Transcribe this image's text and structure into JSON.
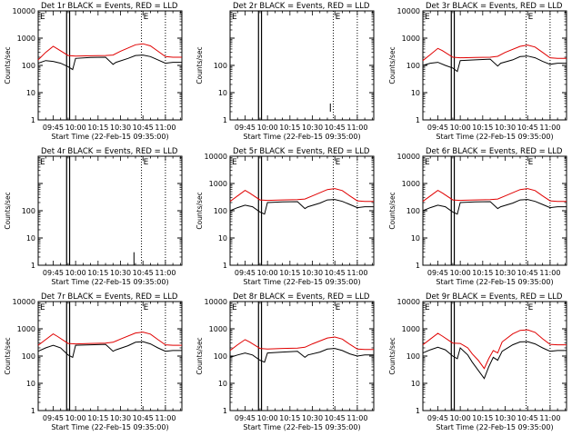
{
  "chart_data": {
    "type": "line",
    "common": {
      "xlabel": "Start Time (22-Feb-15 09:35:00)",
      "ylabel": "Counts/sec",
      "xlim": [
        "09:35",
        "11:11"
      ],
      "ylim": [
        1,
        10000
      ],
      "yscale": "log",
      "x_tick_labels": [
        "09:45",
        "10:00",
        "10:15",
        "10:30",
        "10:45",
        "11:00"
      ],
      "y_tick_labels_small": [
        "1",
        "10",
        "100",
        "1000",
        "10000"
      ],
      "y_tick_labels_large": [
        "1",
        "10",
        "100",
        "1000",
        "10000"
      ],
      "series_colors": {
        "events": "#000000",
        "lld": "#e00000"
      },
      "vertical_markers": {
        "solid": [
          "09:54",
          "09:56"
        ],
        "dotted": [
          "10:44",
          "11:00"
        ]
      },
      "marker_letters": [
        "E",
        "E"
      ]
    },
    "panels": [
      {
        "title": "Det 1r BLACK = Events, RED = LLD",
        "y_tick_labels": [
          "1",
          "10",
          "100",
          "1000",
          "10000"
        ],
        "events": [
          [
            "09:35",
            120
          ],
          [
            "09:40",
            150
          ],
          [
            "09:45",
            140
          ],
          [
            "09:50",
            120
          ],
          [
            "09:55",
            90
          ],
          [
            "09:58",
            70
          ],
          [
            "10:00",
            180
          ],
          [
            "10:10",
            195
          ],
          [
            "10:20",
            200
          ],
          [
            "10:25",
            110
          ],
          [
            "10:27",
            130
          ],
          [
            "10:35",
            180
          ],
          [
            "10:40",
            230
          ],
          [
            "10:45",
            240
          ],
          [
            "10:50",
            210
          ],
          [
            "10:55",
            160
          ],
          [
            "11:00",
            120
          ],
          [
            "11:05",
            130
          ],
          [
            "11:11",
            130
          ]
        ],
        "lld": [
          [
            "09:35",
            160
          ],
          [
            "09:40",
            300
          ],
          [
            "09:45",
            500
          ],
          [
            "09:48",
            400
          ],
          [
            "09:55",
            230
          ],
          [
            "10:00",
            220
          ],
          [
            "10:10",
            225
          ],
          [
            "10:20",
            230
          ],
          [
            "10:25",
            240
          ],
          [
            "10:30",
            330
          ],
          [
            "10:40",
            570
          ],
          [
            "10:45",
            620
          ],
          [
            "10:50",
            520
          ],
          [
            "10:55",
            330
          ],
          [
            "11:00",
            210
          ],
          [
            "11:05",
            200
          ],
          [
            "11:11",
            200
          ]
        ]
      },
      {
        "title": "Det 2r BLACK = Events, RED = LLD",
        "y_tick_labels": [
          "1",
          "10",
          "100"
        ],
        "events": [],
        "lld": [],
        "extra_marks": [
          [
            "10:42",
            2
          ],
          [
            "10:42",
            4
          ]
        ]
      },
      {
        "title": "Det 3r BLACK = Events, RED = LLD",
        "y_tick_labels": [
          "1",
          "10",
          "100",
          "1000",
          "10000"
        ],
        "events": [
          [
            "09:35",
            100
          ],
          [
            "09:40",
            120
          ],
          [
            "09:45",
            130
          ],
          [
            "09:50",
            100
          ],
          [
            "09:55",
            80
          ],
          [
            "09:58",
            60
          ],
          [
            "10:00",
            150
          ],
          [
            "10:10",
            160
          ],
          [
            "10:20",
            170
          ],
          [
            "10:25",
            95
          ],
          [
            "10:27",
            120
          ],
          [
            "10:35",
            160
          ],
          [
            "10:40",
            210
          ],
          [
            "10:45",
            220
          ],
          [
            "10:50",
            190
          ],
          [
            "10:55",
            140
          ],
          [
            "11:00",
            110
          ],
          [
            "11:05",
            120
          ],
          [
            "11:11",
            120
          ]
        ],
        "lld": [
          [
            "09:35",
            150
          ],
          [
            "09:40",
            250
          ],
          [
            "09:45",
            420
          ],
          [
            "09:48",
            350
          ],
          [
            "09:55",
            200
          ],
          [
            "10:00",
            190
          ],
          [
            "10:10",
            195
          ],
          [
            "10:20",
            200
          ],
          [
            "10:25",
            215
          ],
          [
            "10:30",
            300
          ],
          [
            "10:40",
            500
          ],
          [
            "10:45",
            560
          ],
          [
            "10:50",
            470
          ],
          [
            "10:55",
            300
          ],
          [
            "11:00",
            190
          ],
          [
            "11:05",
            180
          ],
          [
            "11:11",
            180
          ]
        ]
      },
      {
        "title": "Det 4r BLACK = Events, RED = LLD",
        "y_tick_labels": [
          "1",
          "10",
          "100"
        ],
        "events": [],
        "lld": [],
        "extra_marks": [
          [
            "10:39",
            1
          ],
          [
            "10:39",
            3
          ]
        ]
      },
      {
        "title": "Det 5r BLACK = Events, RED = LLD",
        "y_tick_labels": [
          "1",
          "10",
          "100",
          "1000",
          "10000"
        ],
        "events": [
          [
            "09:35",
            100
          ],
          [
            "09:40",
            130
          ],
          [
            "09:45",
            160
          ],
          [
            "09:50",
            140
          ],
          [
            "09:55",
            90
          ],
          [
            "09:58",
            75
          ],
          [
            "10:00",
            200
          ],
          [
            "10:10",
            210
          ],
          [
            "10:20",
            215
          ],
          [
            "10:25",
            120
          ],
          [
            "10:27",
            140
          ],
          [
            "10:35",
            190
          ],
          [
            "10:40",
            250
          ],
          [
            "10:45",
            260
          ],
          [
            "10:50",
            220
          ],
          [
            "10:55",
            170
          ],
          [
            "11:00",
            130
          ],
          [
            "11:05",
            140
          ],
          [
            "11:11",
            140
          ]
        ],
        "lld": [
          [
            "09:35",
            220
          ],
          [
            "09:40",
            350
          ],
          [
            "09:45",
            560
          ],
          [
            "09:48",
            450
          ],
          [
            "09:55",
            250
          ],
          [
            "10:00",
            240
          ],
          [
            "10:10",
            250
          ],
          [
            "10:20",
            255
          ],
          [
            "10:25",
            270
          ],
          [
            "10:30",
            350
          ],
          [
            "10:40",
            600
          ],
          [
            "10:45",
            650
          ],
          [
            "10:50",
            550
          ],
          [
            "10:55",
            350
          ],
          [
            "11:00",
            230
          ],
          [
            "11:05",
            220
          ],
          [
            "11:11",
            220
          ]
        ]
      },
      {
        "title": "Det 6r BLACK = Events, RED = LLD",
        "y_tick_labels": [
          "1",
          "10",
          "100",
          "1000",
          "10000"
        ],
        "events": [
          [
            "09:35",
            100
          ],
          [
            "09:40",
            130
          ],
          [
            "09:45",
            160
          ],
          [
            "09:50",
            140
          ],
          [
            "09:55",
            90
          ],
          [
            "09:58",
            75
          ],
          [
            "10:00",
            200
          ],
          [
            "10:10",
            210
          ],
          [
            "10:20",
            215
          ],
          [
            "10:25",
            120
          ],
          [
            "10:27",
            140
          ],
          [
            "10:35",
            190
          ],
          [
            "10:40",
            250
          ],
          [
            "10:45",
            260
          ],
          [
            "10:50",
            220
          ],
          [
            "10:55",
            170
          ],
          [
            "11:00",
            130
          ],
          [
            "11:05",
            140
          ],
          [
            "11:11",
            140
          ]
        ],
        "lld": [
          [
            "09:35",
            220
          ],
          [
            "09:40",
            350
          ],
          [
            "09:45",
            560
          ],
          [
            "09:48",
            450
          ],
          [
            "09:55",
            250
          ],
          [
            "10:00",
            240
          ],
          [
            "10:10",
            250
          ],
          [
            "10:20",
            255
          ],
          [
            "10:25",
            270
          ],
          [
            "10:30",
            350
          ],
          [
            "10:40",
            600
          ],
          [
            "10:45",
            650
          ],
          [
            "10:50",
            550
          ],
          [
            "10:55",
            350
          ],
          [
            "11:00",
            230
          ],
          [
            "11:05",
            220
          ],
          [
            "11:11",
            220
          ]
        ]
      },
      {
        "title": "Det 7r BLACK = Events, RED = LLD",
        "y_tick_labels": [
          "1",
          "10",
          "100",
          "1000",
          "10000"
        ],
        "events": [
          [
            "09:35",
            150
          ],
          [
            "09:40",
            200
          ],
          [
            "09:45",
            250
          ],
          [
            "09:50",
            200
          ],
          [
            "09:55",
            110
          ],
          [
            "09:58",
            90
          ],
          [
            "10:00",
            250
          ],
          [
            "10:10",
            260
          ],
          [
            "10:20",
            270
          ],
          [
            "10:25",
            150
          ],
          [
            "10:27",
            170
          ],
          [
            "10:35",
            240
          ],
          [
            "10:40",
            320
          ],
          [
            "10:45",
            340
          ],
          [
            "10:50",
            280
          ],
          [
            "10:55",
            200
          ],
          [
            "11:00",
            150
          ],
          [
            "11:05",
            160
          ],
          [
            "11:11",
            160
          ]
        ],
        "lld": [
          [
            "09:35",
            250
          ],
          [
            "09:40",
            400
          ],
          [
            "09:45",
            650
          ],
          [
            "09:48",
            520
          ],
          [
            "09:55",
            290
          ],
          [
            "10:00",
            280
          ],
          [
            "10:10",
            290
          ],
          [
            "10:20",
            300
          ],
          [
            "10:25",
            320
          ],
          [
            "10:30",
            420
          ],
          [
            "10:40",
            700
          ],
          [
            "10:45",
            760
          ],
          [
            "10:50",
            640
          ],
          [
            "10:55",
            400
          ],
          [
            "11:00",
            260
          ],
          [
            "11:05",
            250
          ],
          [
            "11:11",
            250
          ]
        ]
      },
      {
        "title": "Det 8r BLACK = Events, RED = LLD",
        "y_tick_labels": [
          "1",
          "10",
          "100",
          "1000",
          "10000"
        ],
        "events": [
          [
            "09:35",
            90
          ],
          [
            "09:40",
            110
          ],
          [
            "09:45",
            130
          ],
          [
            "09:50",
            110
          ],
          [
            "09:55",
            70
          ],
          [
            "09:58",
            60
          ],
          [
            "10:00",
            130
          ],
          [
            "10:10",
            140
          ],
          [
            "10:20",
            150
          ],
          [
            "10:25",
            90
          ],
          [
            "10:27",
            110
          ],
          [
            "10:35",
            140
          ],
          [
            "10:40",
            180
          ],
          [
            "10:45",
            190
          ],
          [
            "10:50",
            160
          ],
          [
            "10:55",
            120
          ],
          [
            "11:00",
            100
          ],
          [
            "11:05",
            110
          ],
          [
            "11:11",
            110
          ]
        ],
        "lld": [
          [
            "09:35",
            160
          ],
          [
            "09:40",
            260
          ],
          [
            "09:45",
            400
          ],
          [
            "09:48",
            330
          ],
          [
            "09:55",
            190
          ],
          [
            "10:00",
            180
          ],
          [
            "10:10",
            190
          ],
          [
            "10:20",
            195
          ],
          [
            "10:25",
            210
          ],
          [
            "10:30",
            280
          ],
          [
            "10:40",
            460
          ],
          [
            "10:45",
            500
          ],
          [
            "10:50",
            420
          ],
          [
            "10:55",
            270
          ],
          [
            "11:00",
            180
          ],
          [
            "11:05",
            175
          ],
          [
            "11:11",
            175
          ]
        ]
      },
      {
        "title": "Det 9r BLACK = Events, RED = LLD",
        "y_tick_labels": [
          "1",
          "10",
          "100",
          "1000",
          "10000"
        ],
        "events": [
          [
            "09:35",
            130
          ],
          [
            "09:40",
            170
          ],
          [
            "09:45",
            210
          ],
          [
            "09:50",
            170
          ],
          [
            "09:55",
            100
          ],
          [
            "09:58",
            80
          ],
          [
            "10:00",
            200
          ],
          [
            "10:05",
            110
          ],
          [
            "10:08",
            60
          ],
          [
            "10:12",
            30
          ],
          [
            "10:16",
            15
          ],
          [
            "10:19",
            40
          ],
          [
            "10:22",
            90
          ],
          [
            "10:25",
            70
          ],
          [
            "10:28",
            150
          ],
          [
            "10:35",
            260
          ],
          [
            "10:40",
            330
          ],
          [
            "10:45",
            340
          ],
          [
            "10:50",
            280
          ],
          [
            "10:55",
            200
          ],
          [
            "11:00",
            150
          ],
          [
            "11:05",
            160
          ],
          [
            "11:11",
            160
          ]
        ],
        "lld": [
          [
            "09:35",
            260
          ],
          [
            "09:40",
            420
          ],
          [
            "09:45",
            680
          ],
          [
            "09:48",
            540
          ],
          [
            "09:55",
            300
          ],
          [
            "10:00",
            290
          ],
          [
            "10:05",
            200
          ],
          [
            "10:08",
            120
          ],
          [
            "10:12",
            70
          ],
          [
            "10:16",
            35
          ],
          [
            "10:19",
            80
          ],
          [
            "10:22",
            160
          ],
          [
            "10:25",
            130
          ],
          [
            "10:28",
            330
          ],
          [
            "10:35",
            650
          ],
          [
            "10:40",
            880
          ],
          [
            "10:45",
            920
          ],
          [
            "10:50",
            740
          ],
          [
            "10:55",
            430
          ],
          [
            "11:00",
            270
          ],
          [
            "11:05",
            260
          ],
          [
            "11:11",
            260
          ]
        ]
      }
    ]
  }
}
